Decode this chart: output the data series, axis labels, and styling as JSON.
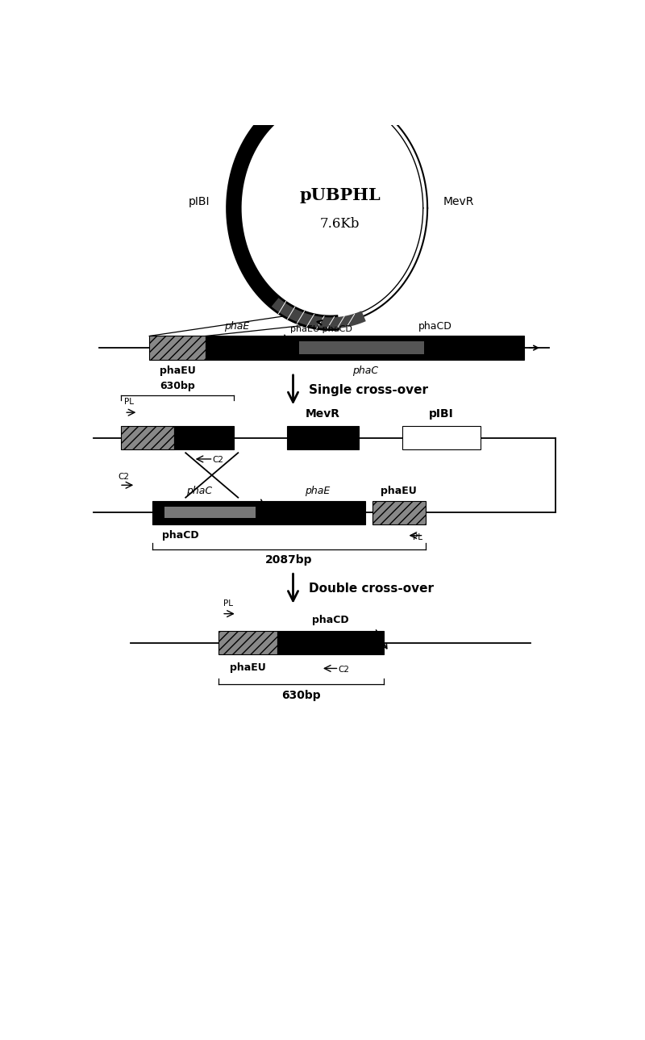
{
  "bg_color": "#ffffff",
  "plasmid_label_main": "pUBPHL",
  "plasmid_label_sub": "7.6Kb",
  "plasmid_pIBI": "pIBI",
  "plasmid_MevR": "MevR",
  "plasmid_phaEU_phaCD": "phaEU phaCD",
  "single_crossover": "Single cross-over",
  "double_crossover": "Double cross-over",
  "line1_phaEU": "phaEU",
  "line1_phaE": "phaE",
  "line1_phaCD": "phaCD",
  "line1_phaC": "phaC",
  "upper_MevR": "MevR",
  "upper_pIBI": "pIBI",
  "upper_630bp": "630bp",
  "upper_PL": "PL",
  "upper_C2": "C2",
  "lower_phaC": "phaC",
  "lower_phaE": "phaE",
  "lower_phaEU": "phaEU",
  "lower_phaCD": "phaCD",
  "lower_C2": "C2",
  "lower_PL": "PL",
  "lower_2087bp": "2087bp",
  "final_phaEU": "phaEU",
  "final_phaCD": "phaCD",
  "final_PL": "PL",
  "final_C2": "C2",
  "final_630bp": "630bp"
}
